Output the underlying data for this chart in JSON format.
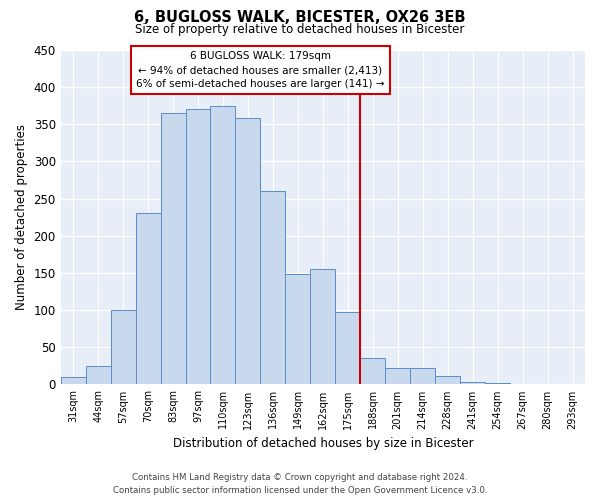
{
  "title": "6, BUGLOSS WALK, BICESTER, OX26 3EB",
  "subtitle": "Size of property relative to detached houses in Bicester",
  "xlabel": "Distribution of detached houses by size in Bicester",
  "ylabel": "Number of detached properties",
  "bar_labels": [
    "31sqm",
    "44sqm",
    "57sqm",
    "70sqm",
    "83sqm",
    "97sqm",
    "110sqm",
    "123sqm",
    "136sqm",
    "149sqm",
    "162sqm",
    "175sqm",
    "188sqm",
    "201sqm",
    "214sqm",
    "228sqm",
    "241sqm",
    "254sqm",
    "267sqm",
    "280sqm",
    "293sqm"
  ],
  "bar_values": [
    10,
    25,
    100,
    230,
    365,
    370,
    375,
    358,
    260,
    148,
    155,
    97,
    35,
    22,
    22,
    11,
    3,
    2,
    1,
    0,
    1
  ],
  "bar_color": "#c8d9ee",
  "bar_edge_color": "#5b8cc8",
  "vline_color": "#cc0000",
  "annotation_title": "6 BUGLOSS WALK: 179sqm",
  "annotation_line1": "← 94% of detached houses are smaller (2,413)",
  "annotation_line2": "6% of semi-detached houses are larger (141) →",
  "annotation_box_color": "#ffffff",
  "annotation_box_edge": "#cc0000",
  "footer_line1": "Contains HM Land Registry data © Crown copyright and database right 2024.",
  "footer_line2": "Contains public sector information licensed under the Open Government Licence v3.0.",
  "ax_bg_color": "#e8eef7",
  "grid_color": "#ffffff",
  "ylim": [
    0,
    450
  ],
  "figsize": [
    6.0,
    5.0
  ],
  "dpi": 100
}
